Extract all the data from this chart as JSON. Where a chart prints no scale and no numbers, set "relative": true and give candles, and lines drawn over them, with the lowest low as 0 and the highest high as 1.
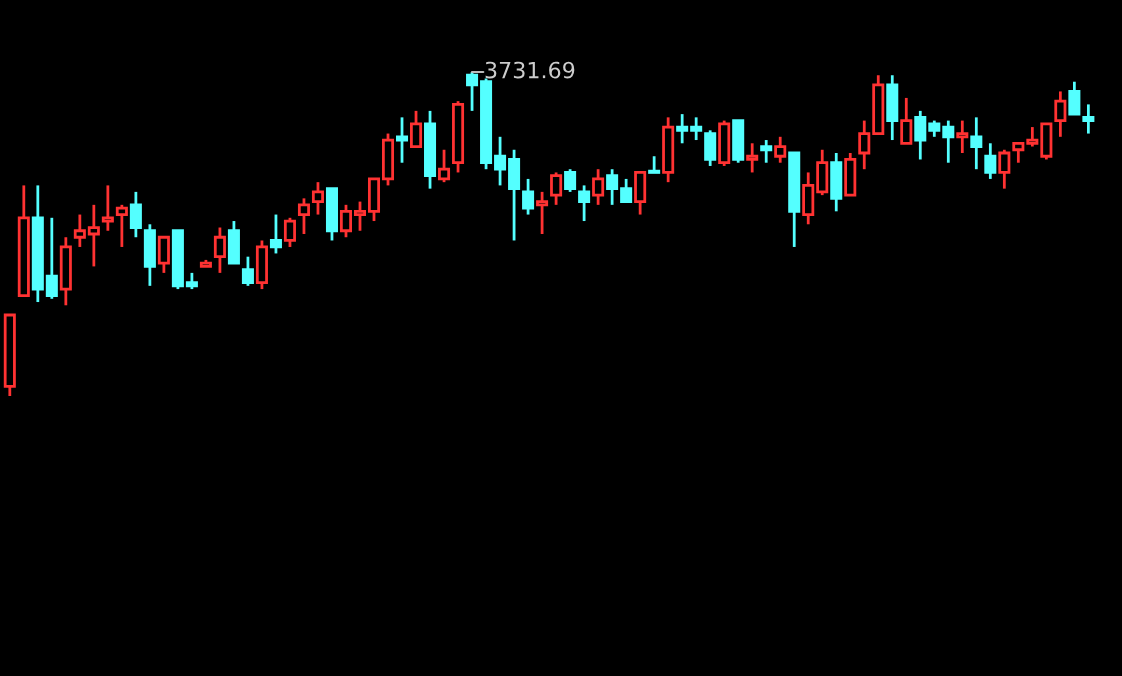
{
  "chart_data": {
    "type": "candlestick",
    "relative": true,
    "categories": [
      null,
      null,
      null,
      null,
      null,
      null,
      null,
      null,
      null,
      null,
      null,
      null,
      null,
      null,
      null,
      null,
      null,
      null,
      null,
      null,
      null,
      null,
      null,
      null,
      null,
      null,
      null,
      null,
      null,
      null,
      null,
      null,
      null,
      null,
      null,
      null,
      null,
      null,
      null,
      null,
      null,
      null,
      null,
      null,
      null,
      null,
      null,
      null,
      null,
      null,
      null,
      null,
      null,
      null,
      null,
      null,
      null,
      null,
      null,
      null,
      null,
      null,
      null,
      null,
      null,
      null,
      null,
      null,
      null,
      null,
      null,
      null,
      null,
      null,
      null,
      null,
      null,
      null
    ],
    "ohlc": [
      [
        0.03,
        0.25,
        0,
        0.25
      ],
      [
        0.31,
        0.65,
        0.31,
        0.55
      ],
      [
        0.55,
        0.65,
        0.29,
        0.33
      ],
      [
        0.37,
        0.55,
        0.3,
        0.31
      ],
      [
        0.33,
        0.49,
        0.28,
        0.46
      ],
      [
        0.49,
        0.56,
        0.46,
        0.51
      ],
      [
        0.5,
        0.59,
        0.4,
        0.52
      ],
      [
        0.54,
        0.65,
        0.51,
        0.55
      ],
      [
        0.56,
        0.59,
        0.46,
        0.58
      ],
      [
        0.59,
        0.63,
        0.49,
        0.52
      ],
      [
        0.51,
        0.53,
        0.34,
        0.4
      ],
      [
        0.41,
        0.49,
        0.38,
        0.49
      ],
      [
        0.51,
        0.51,
        0.33,
        0.34
      ],
      [
        0.35,
        0.38,
        0.33,
        0.34
      ],
      [
        0.4,
        0.42,
        0.4,
        0.41
      ],
      [
        0.43,
        0.52,
        0.38,
        0.49
      ],
      [
        0.51,
        0.54,
        0.41,
        0.41
      ],
      [
        0.39,
        0.43,
        0.34,
        0.35
      ],
      [
        0.35,
        0.48,
        0.33,
        0.46
      ],
      [
        0.48,
        0.56,
        0.44,
        0.46
      ],
      [
        0.48,
        0.55,
        0.46,
        0.54
      ],
      [
        0.56,
        0.61,
        0.5,
        0.59
      ],
      [
        0.6,
        0.66,
        0.56,
        0.63
      ],
      [
        0.64,
        0.64,
        0.48,
        0.51
      ],
      [
        0.51,
        0.59,
        0.49,
        0.57
      ],
      [
        0.56,
        0.6,
        0.51,
        0.57
      ],
      [
        0.57,
        0.67,
        0.54,
        0.67
      ],
      [
        0.67,
        0.81,
        0.65,
        0.79
      ],
      [
        0.8,
        0.86,
        0.72,
        0.79
      ],
      [
        0.77,
        0.88,
        0.77,
        0.84
      ],
      [
        0.84,
        0.88,
        0.64,
        0.68
      ],
      [
        0.67,
        0.76,
        0.66,
        0.7
      ],
      [
        0.72,
        0.91,
        0.69,
        0.9
      ],
      [
        0.99,
        1.0,
        0.88,
        0.96
      ],
      [
        0.97,
        0.98,
        0.7,
        0.72
      ],
      [
        0.74,
        0.8,
        0.65,
        0.7
      ],
      [
        0.73,
        0.76,
        0.48,
        0.64
      ],
      [
        0.63,
        0.67,
        0.56,
        0.58
      ],
      [
        0.59,
        0.63,
        0.5,
        0.6
      ],
      [
        0.62,
        0.69,
        0.59,
        0.68
      ],
      [
        0.69,
        0.7,
        0.63,
        0.64
      ],
      [
        0.63,
        0.65,
        0.54,
        0.6
      ],
      [
        0.62,
        0.7,
        0.59,
        0.67
      ],
      [
        0.68,
        0.7,
        0.59,
        0.64
      ],
      [
        0.64,
        0.67,
        0.6,
        0.6
      ],
      [
        0.6,
        0.69,
        0.56,
        0.69
      ],
      [
        0.69,
        0.74,
        0.69,
        0.69
      ],
      [
        0.69,
        0.86,
        0.66,
        0.83
      ],
      [
        0.83,
        0.87,
        0.78,
        0.82
      ],
      [
        0.83,
        0.86,
        0.79,
        0.82
      ],
      [
        0.81,
        0.82,
        0.71,
        0.73
      ],
      [
        0.72,
        0.85,
        0.71,
        0.84
      ],
      [
        0.85,
        0.85,
        0.72,
        0.73
      ],
      [
        0.73,
        0.78,
        0.69,
        0.74
      ],
      [
        0.77,
        0.79,
        0.72,
        0.76
      ],
      [
        0.74,
        0.8,
        0.72,
        0.77
      ],
      [
        0.75,
        0.75,
        0.46,
        0.57
      ],
      [
        0.56,
        0.69,
        0.53,
        0.65
      ],
      [
        0.63,
        0.76,
        0.62,
        0.72
      ],
      [
        0.72,
        0.75,
        0.57,
        0.61
      ],
      [
        0.62,
        0.75,
        0.62,
        0.73
      ],
      [
        0.75,
        0.85,
        0.7,
        0.81
      ],
      [
        0.81,
        0.99,
        0.81,
        0.96
      ],
      [
        0.96,
        0.99,
        0.79,
        0.85
      ],
      [
        0.78,
        0.92,
        0.78,
        0.85
      ],
      [
        0.86,
        0.88,
        0.73,
        0.79
      ],
      [
        0.84,
        0.85,
        0.8,
        0.82
      ],
      [
        0.83,
        0.85,
        0.72,
        0.8
      ],
      [
        0.8,
        0.85,
        0.75,
        0.81
      ],
      [
        0.8,
        0.86,
        0.7,
        0.77
      ],
      [
        0.74,
        0.78,
        0.67,
        0.69
      ],
      [
        0.69,
        0.76,
        0.64,
        0.75
      ],
      [
        0.76,
        0.78,
        0.72,
        0.78
      ],
      [
        0.78,
        0.83,
        0.77,
        0.79
      ],
      [
        0.74,
        0.84,
        0.73,
        0.84
      ],
      [
        0.85,
        0.94,
        0.8,
        0.91
      ],
      [
        0.94,
        0.97,
        0.87,
        0.87
      ],
      [
        0.86,
        0.9,
        0.81,
        0.85
      ]
    ],
    "colors": [
      "#ff3232",
      "#ff3232",
      "#54ffff",
      "#54ffff",
      "#ff3232",
      "#ff3232",
      "#ff3232",
      "#ff3232",
      "#ff3232",
      "#54ffff",
      "#54ffff",
      "#ff3232",
      "#54ffff",
      "#54ffff",
      "#ff3232",
      "#ff3232",
      "#54ffff",
      "#54ffff",
      "#ff3232",
      "#54ffff",
      "#ff3232",
      "#ff3232",
      "#ff3232",
      "#54ffff",
      "#ff3232",
      "#ff3232",
      "#ff3232",
      "#ff3232",
      "#54ffff",
      "#ff3232",
      "#54ffff",
      "#ff3232",
      "#ff3232",
      "#54ffff",
      "#54ffff",
      "#54ffff",
      "#54ffff",
      "#54ffff",
      "#ff3232",
      "#ff3232",
      "#54ffff",
      "#54ffff",
      "#ff3232",
      "#54ffff",
      "#54ffff",
      "#ff3232",
      "#54ffff",
      "#ff3232",
      "#54ffff",
      "#54ffff",
      "#54ffff",
      "#ff3232",
      "#54ffff",
      "#ff3232",
      "#54ffff",
      "#ff3232",
      "#54ffff",
      "#ff3232",
      "#ff3232",
      "#54ffff",
      "#ff3232",
      "#ff3232",
      "#ff3232",
      "#54ffff",
      "#ff3232",
      "#54ffff",
      "#54ffff",
      "#54ffff",
      "#ff3232",
      "#54ffff",
      "#54ffff",
      "#ff3232",
      "#ff3232",
      "#ff3232",
      "#ff3232",
      "#ff3232",
      "#54ffff",
      "#54ffff"
    ],
    "annotations": [
      "3731.69"
    ]
  }
}
